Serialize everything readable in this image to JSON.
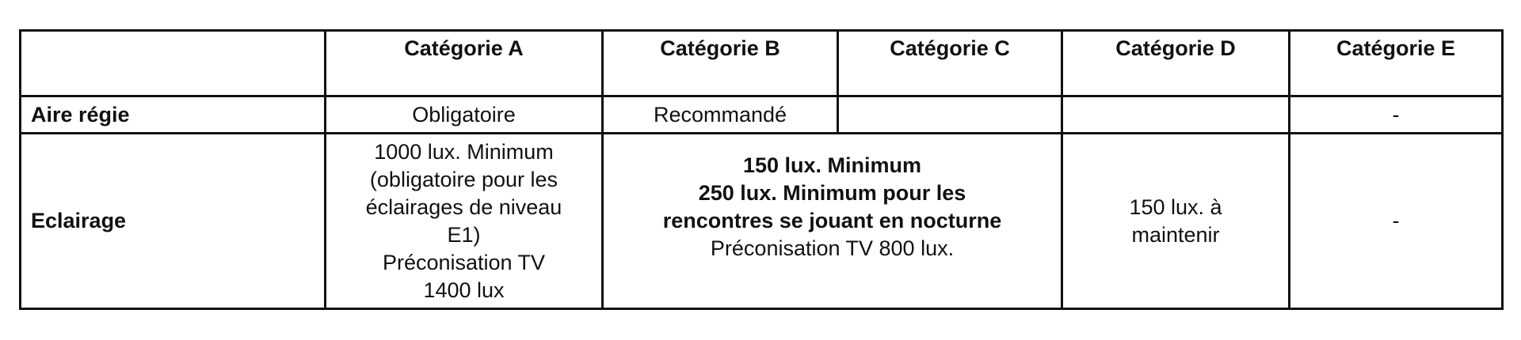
{
  "table": {
    "headers": [
      "",
      "Catégorie A",
      "Catégorie B",
      "Catégorie C",
      "Catégorie D",
      "Catégorie E"
    ],
    "rows": [
      {
        "label": "Aire régie",
        "cells": [
          "Obligatoire",
          "Recommandé",
          "",
          "",
          "-"
        ]
      },
      {
        "label": "Eclairage",
        "cat_a": [
          "1000 lux. Minimum",
          "(obligatoire pour les",
          "éclairages de niveau",
          "E1)",
          "Préconisation TV",
          "1400 lux"
        ],
        "cat_bc_bold": [
          "150 lux. Minimum",
          "250 lux. Minimum pour les",
          "rencontres se jouant en nocturne"
        ],
        "cat_bc_normal": "Préconisation TV 800 lux.",
        "cat_d": [
          "150 lux. à",
          "maintenir"
        ],
        "cat_e": "-"
      }
    ]
  }
}
